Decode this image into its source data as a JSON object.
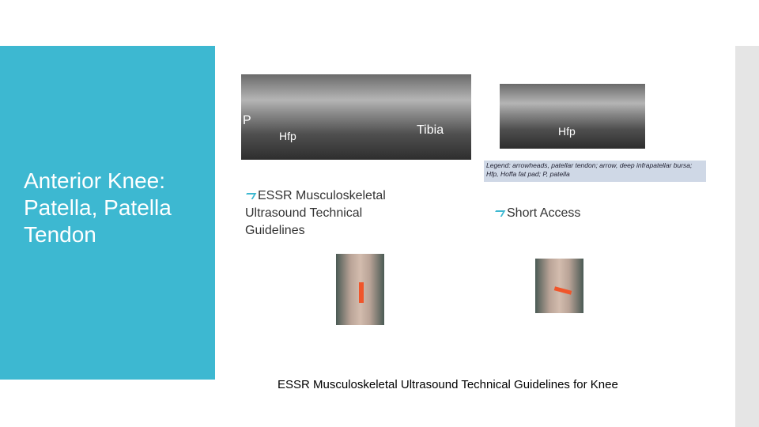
{
  "slide": {
    "title": "Anterior Knee: Patella, Patella Tendon",
    "images": [
      {
        "labels": [
          "P",
          "Hfp",
          "Tibia"
        ]
      },
      {
        "labels": [
          "Hfp"
        ],
        "legend": "Legend: arrowheads, patellar tendon; arrow, deep infrapatellar bursa; Hfp, Hoffa fat pad; P, patella"
      }
    ],
    "bullets": [
      "ESSR Musculoskeletal Ultrasound Technical Guidelines",
      "Short Access"
    ],
    "caption": "ESSR Musculoskeletal Ultrasound Technical Guidelines for Knee"
  }
}
